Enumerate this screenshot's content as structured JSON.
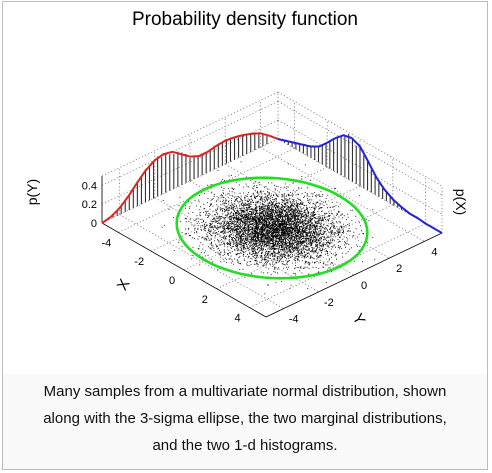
{
  "title": "Probability density function",
  "caption": [
    "Many samples from a multivariate normal distribution, shown",
    "along with the 3-sigma ellipse, the two marginal distributions,",
    "and the two 1-d histograms."
  ],
  "chart_data": {
    "type": "scatter",
    "projection": "3d",
    "title": "Probability density function",
    "xlabel": "X",
    "ylabel": "Y",
    "zlabel_left": "p(Y)",
    "zlabel_right": "p(X)",
    "xlim": [
      -5,
      5
    ],
    "ylim": [
      -5,
      5
    ],
    "zlim": [
      0,
      0.5
    ],
    "x_ticks": [
      -4,
      -2,
      0,
      2,
      4
    ],
    "y_ticks": [
      -4,
      -2,
      0,
      2,
      4
    ],
    "z_ticks": [
      0,
      0.2,
      0.4
    ],
    "z_tick_labels": [
      "0",
      "0.2",
      "0.4"
    ],
    "grid": true,
    "samples": {
      "name": "Samples",
      "color": "#000000",
      "count": 10000,
      "mean": [
        0,
        0
      ],
      "std": [
        1.4,
        1.25
      ]
    },
    "ellipse": {
      "name": "3-sigma ellipse",
      "color": "#22dd22",
      "sigma": 3
    },
    "marginals": [
      {
        "name": "p(Y)",
        "color": "#dd2222",
        "wall": "x = -5",
        "y": [
          -5,
          -4.5,
          -4,
          -3.5,
          -3,
          -2.5,
          -2,
          -1.5,
          -1,
          -0.5,
          0,
          0.5,
          1,
          1.5,
          2,
          2.5,
          3,
          3.5,
          4,
          4.5,
          5
        ],
        "density": [
          0.0,
          0.02,
          0.07,
          0.15,
          0.25,
          0.34,
          0.4,
          0.42,
          0.4,
          0.33,
          0.26,
          0.22,
          0.22,
          0.24,
          0.25,
          0.24,
          0.22,
          0.19,
          0.15,
          0.08,
          0.0
        ]
      },
      {
        "name": "p(X)",
        "color": "#2222dd",
        "wall": "y = 5",
        "x": [
          -5,
          -4.5,
          -4,
          -3.5,
          -3,
          -2.5,
          -2,
          -1.5,
          -1,
          -0.5,
          0,
          0.5,
          1,
          1.5,
          2,
          2.5,
          3,
          3.5,
          4,
          4.5,
          5
        ],
        "density": [
          0.0,
          0.03,
          0.06,
          0.09,
          0.12,
          0.17,
          0.26,
          0.36,
          0.44,
          0.46,
          0.42,
          0.31,
          0.19,
          0.11,
          0.06,
          0.03,
          0.01,
          0.01,
          0.0,
          0.0,
          0.0
        ]
      }
    ]
  }
}
